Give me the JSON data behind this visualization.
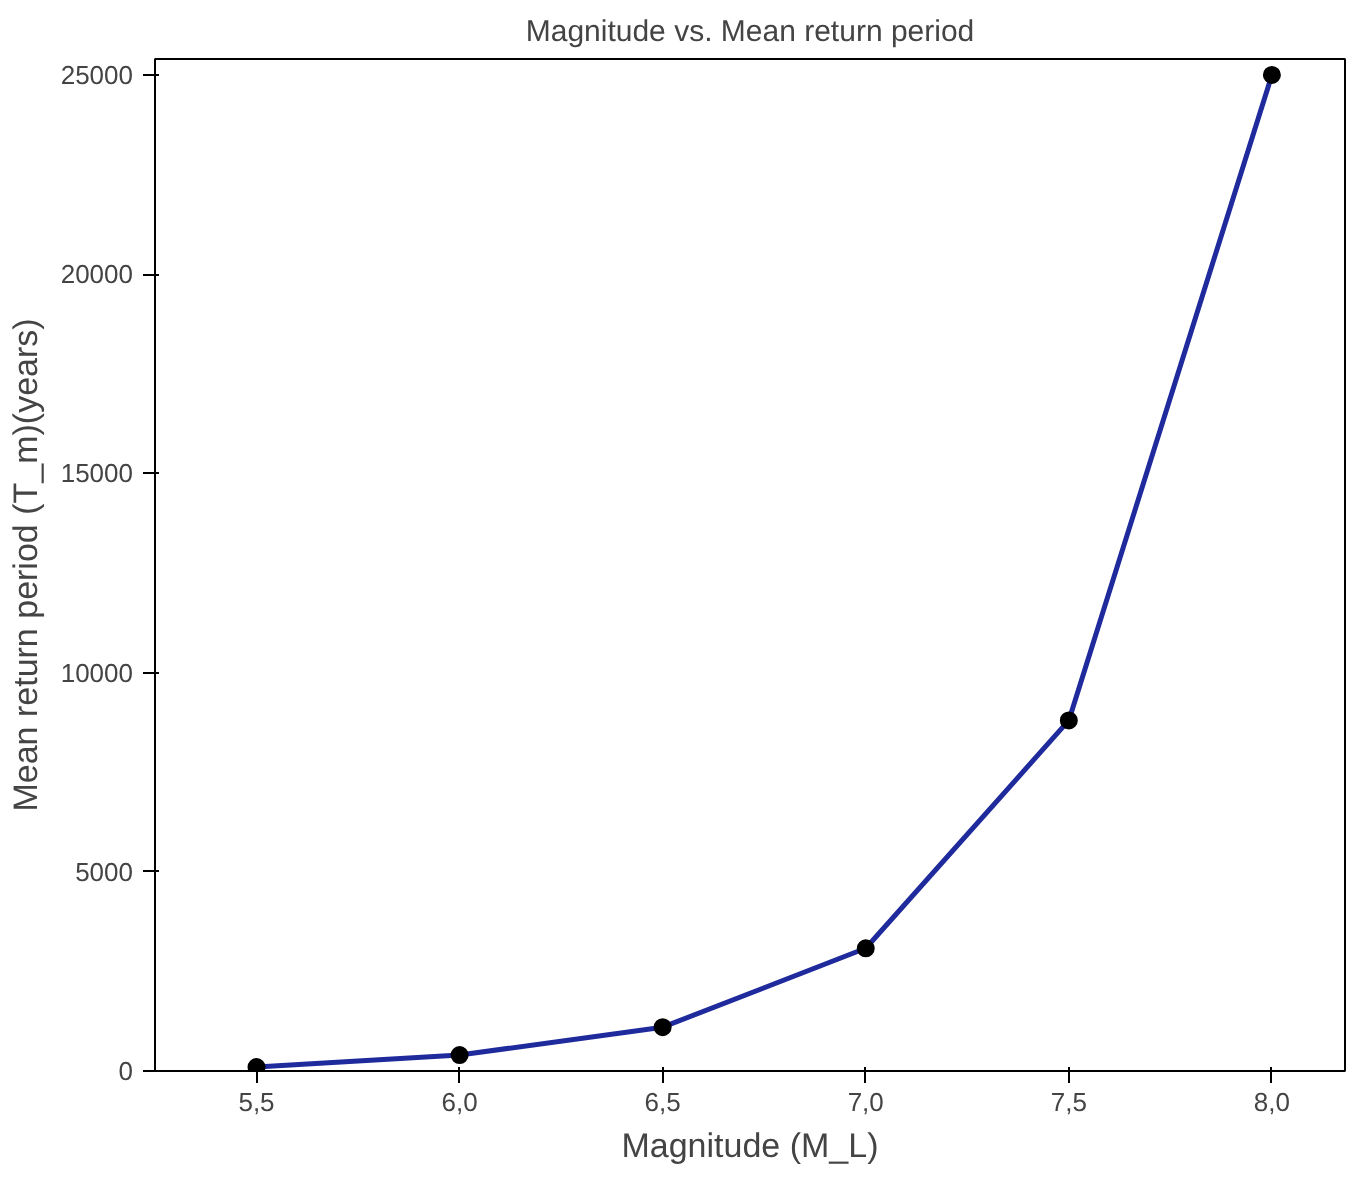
{
  "chart_data": {
    "type": "line",
    "title": "Magnitude vs. Mean return period",
    "xlabel": "Magnitude (M_L)",
    "ylabel": "Mean return period (T_m)(years)",
    "x": [
      5.5,
      6.0,
      6.5,
      7.0,
      7.5,
      8.0
    ],
    "series": [
      {
        "color": "#1f2a9c",
        "values": [
          100,
          400,
          1100,
          3080,
          8800,
          25000
        ]
      }
    ],
    "xlim": [
      5.25,
      8.18
    ],
    "ylim": [
      0,
      25400
    ],
    "xticks": [
      {
        "value": 5.5,
        "label": "5,5"
      },
      {
        "value": 6.0,
        "label": "6,0"
      },
      {
        "value": 6.5,
        "label": "6,5"
      },
      {
        "value": 7.0,
        "label": "7,0"
      },
      {
        "value": 7.5,
        "label": "7,5"
      },
      {
        "value": 8.0,
        "label": "8,0"
      }
    ],
    "yticks": [
      0,
      5000,
      10000,
      15000,
      20000,
      25000
    ],
    "grid": false,
    "marker": "circle",
    "line_style": "solid"
  }
}
